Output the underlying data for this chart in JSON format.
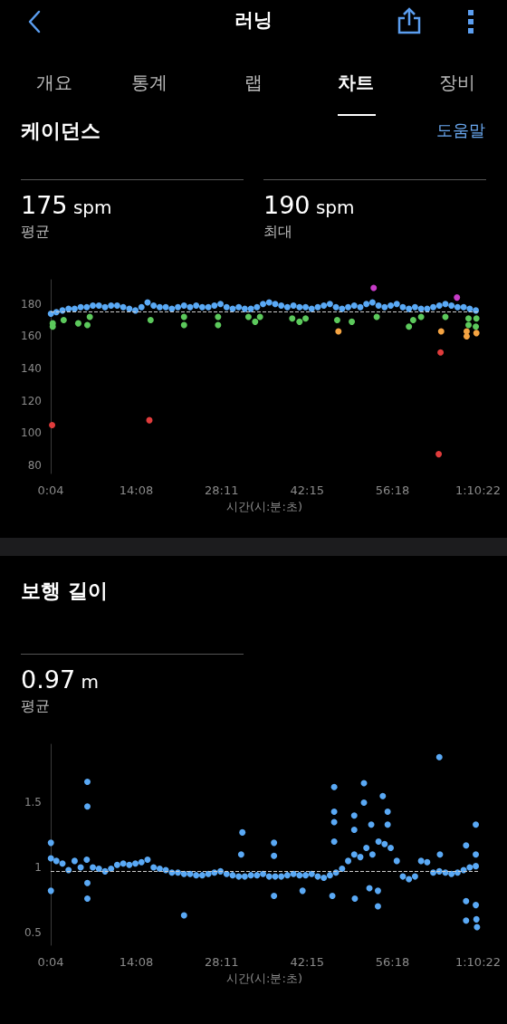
{
  "chart_data": [
    {
      "type": "scatter",
      "title": "케이던스",
      "xlabel": "시간(시:분:초)",
      "annotations": [
        "러닝",
        "개요",
        "통계",
        "랩",
        "차트",
        "장비",
        "도움말",
        "175 spm",
        "평균",
        "190 spm",
        "최대"
      ],
      "xlim": [
        0.0667,
        70.367
      ],
      "xticks": [
        {
          "value": 0.0667,
          "label": "0:04"
        },
        {
          "value": 14.133,
          "label": "14:08"
        },
        {
          "value": 28.183,
          "label": "28:11"
        },
        {
          "value": 42.25,
          "label": "42:15"
        },
        {
          "value": 56.3,
          "label": "56:18"
        },
        {
          "value": 70.367,
          "label": "1:10:22"
        }
      ],
      "ylim": [
        75,
        195
      ],
      "yticks": [
        80,
        100,
        120,
        140,
        160,
        180
      ],
      "grid": false,
      "marker": "circle",
      "ref_lines": [
        {
          "axis": "y",
          "value": 175,
          "label": null,
          "color": "#cccccc",
          "line_style": "dashed"
        }
      ],
      "series": [
        {
          "color": "#5aa9f5",
          "x": [
            0.1,
            1,
            2,
            3,
            4,
            5,
            6,
            7,
            8,
            9,
            10,
            11,
            12,
            13,
            14,
            15,
            16,
            17,
            18,
            19,
            20,
            21,
            22,
            23,
            24,
            25,
            26,
            27,
            28,
            29,
            30,
            31,
            32,
            33,
            34,
            35,
            36,
            37,
            38,
            39,
            40,
            41,
            42,
            43,
            44,
            45,
            46,
            47,
            48,
            49,
            50,
            51,
            52,
            53,
            54,
            55,
            56,
            57,
            58,
            59,
            60,
            61,
            62,
            63,
            64,
            65,
            66,
            67,
            68,
            69,
            70
          ],
          "values": [
            174,
            175,
            176,
            177,
            177,
            178,
            178,
            179,
            179,
            178,
            179,
            179,
            178,
            177,
            176,
            178,
            181,
            179,
            178,
            178,
            177,
            178,
            179,
            178,
            179,
            178,
            178,
            179,
            180,
            178,
            177,
            178,
            177,
            177,
            178,
            180,
            181,
            180,
            179,
            178,
            179,
            178,
            178,
            177,
            178,
            179,
            180,
            178,
            177,
            178,
            179,
            178,
            180,
            181,
            179,
            178,
            179,
            180,
            178,
            177,
            178,
            177,
            177,
            178,
            179,
            180,
            179,
            178,
            178,
            177,
            176
          ]
        },
        {
          "color": "#5cc95c",
          "x": [
            0.4,
            0.4,
            2.2,
            4.6,
            6.1,
            6.5,
            16.5,
            22,
            22,
            27.6,
            27.6,
            32.6,
            33.7,
            34.5,
            39.8,
            41,
            42,
            47.2,
            49.6,
            53.7,
            59,
            59.7,
            61,
            65,
            68.8,
            68.8,
            70,
            70.1
          ],
          "values": [
            166,
            168,
            170,
            168,
            167,
            172,
            170,
            167,
            172,
            167,
            172,
            172,
            169,
            172,
            171,
            169,
            171,
            170,
            169,
            172,
            166,
            170,
            172,
            172,
            167,
            171,
            166,
            171
          ]
        },
        {
          "color": "#f5a442",
          "x": [
            47.4,
            64.3,
            68.5,
            68.5,
            70.1
          ],
          "values": [
            163,
            163,
            163,
            160,
            162
          ]
        },
        {
          "color": "#e03c3c",
          "x": [
            0.3,
            16.3,
            64.2,
            63.9
          ],
          "values": [
            105,
            108,
            150,
            87
          ]
        },
        {
          "color": "#c83cc8",
          "x": [
            53.2,
            66.9
          ],
          "values": [
            190,
            184
          ]
        }
      ]
    },
    {
      "type": "scatter",
      "title": "보행 길이",
      "xlabel": "시간(시:분:초)",
      "annotations": [
        "0.97 m",
        "평균"
      ],
      "xlim": [
        0.0667,
        70.367
      ],
      "xticks": [
        {
          "value": 0.0667,
          "label": "0:04"
        },
        {
          "value": 14.133,
          "label": "14:08"
        },
        {
          "value": 28.183,
          "label": "28:11"
        },
        {
          "value": 42.25,
          "label": "42:15"
        },
        {
          "value": 56.3,
          "label": "56:18"
        },
        {
          "value": 70.367,
          "label": "1:10:22"
        }
      ],
      "ylim": [
        0.4,
        1.95
      ],
      "yticks": [
        0.5,
        1,
        1.5
      ],
      "grid": false,
      "marker": "circle",
      "ref_lines": [
        {
          "axis": "y",
          "value": 0.97,
          "label": null,
          "color": "#cccccc",
          "line_style": "dashed"
        }
      ],
      "series": [
        {
          "color": "#5aa9f5",
          "x": [
            0.1,
            1,
            2,
            3,
            4,
            5,
            6,
            7,
            8,
            9,
            10,
            11,
            12,
            13,
            14,
            15,
            16,
            17,
            18,
            19,
            20,
            21,
            22,
            23,
            24,
            25,
            26,
            27,
            28,
            29,
            30,
            31,
            32,
            33,
            34,
            35,
            36,
            37,
            38,
            39,
            40,
            41,
            42,
            43,
            44,
            45,
            46,
            47,
            48,
            49,
            50,
            51,
            52,
            53,
            54,
            55,
            56,
            57,
            58,
            59,
            60,
            61,
            62,
            63,
            64,
            65,
            66,
            67,
            68,
            69,
            70
          ],
          "values": [
            1.07,
            1.05,
            1.03,
            0.98,
            1.05,
            1.0,
            1.06,
            1.0,
            0.99,
            0.97,
            0.99,
            1.02,
            1.03,
            1.02,
            1.03,
            1.04,
            1.06,
            1.0,
            0.99,
            0.98,
            0.96,
            0.96,
            0.95,
            0.95,
            0.94,
            0.94,
            0.95,
            0.96,
            0.97,
            0.95,
            0.94,
            0.93,
            0.93,
            0.94,
            0.94,
            0.95,
            0.93,
            0.93,
            0.93,
            0.94,
            0.95,
            0.94,
            0.94,
            0.95,
            0.93,
            0.92,
            0.94,
            0.96,
            0.99,
            1.05,
            1.1,
            1.08,
            1.15,
            1.1,
            1.2,
            1.18,
            1.15,
            1.05,
            0.93,
            0.91,
            0.93,
            1.05,
            1.04,
            0.96,
            0.97,
            0.96,
            0.95,
            0.96,
            0.98,
            1.0,
            1.01
          ]
        },
        {
          "color": "#5aa9f5",
          "x": [
            6.1,
            6.1,
            6.1,
            6.1,
            0.1,
            0.1,
            31.6,
            31.4,
            22,
            36.8,
            36.8,
            36.8,
            41.5,
            46.7,
            46.7,
            46.7,
            46.7,
            46.4,
            50,
            50,
            50.1,
            51.6,
            51.6,
            52.5,
            52.8,
            53.9,
            53.9,
            54.7,
            55.5,
            55.5,
            64,
            64.1,
            68.4,
            68.4,
            68.4,
            70,
            70,
            70,
            70.2,
            70.1
          ],
          "values": [
            1.66,
            1.47,
            0.88,
            0.76,
            1.19,
            0.82,
            1.27,
            1.1,
            0.63,
            1.19,
            1.09,
            0.78,
            0.82,
            1.62,
            1.43,
            1.35,
            1.2,
            0.78,
            1.4,
            1.29,
            0.76,
            1.65,
            1.5,
            0.84,
            1.33,
            0.7,
            0.82,
            1.55,
            1.43,
            1.33,
            1.85,
            1.1,
            1.17,
            0.74,
            0.59,
            1.33,
            1.1,
            0.71,
            0.54,
            0.6
          ]
        }
      ]
    }
  ]
}
